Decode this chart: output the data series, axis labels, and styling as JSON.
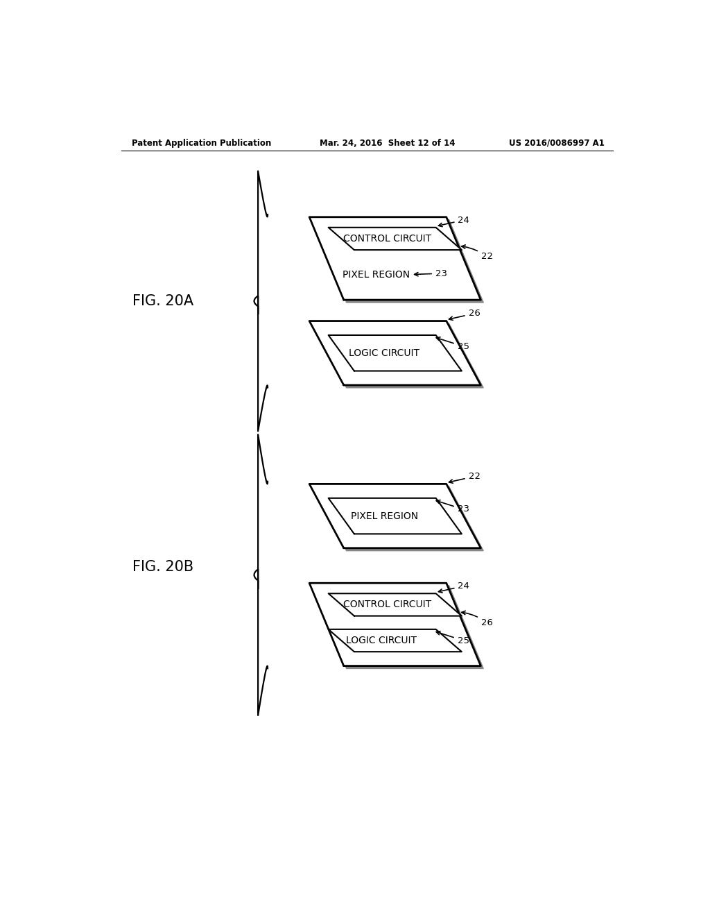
{
  "bg_color": "#ffffff",
  "header_left": "Patent Application Publication",
  "header_mid": "Mar. 24, 2016  Sheet 12 of 14",
  "header_right": "US 2016/0086997 A1",
  "fig_20a_label": "FIG. 20A",
  "fig_20b_label": "FIG. 20B",
  "line_color": "#000000",
  "text_color": "#000000",
  "shadow_color": "#aaaaaa"
}
